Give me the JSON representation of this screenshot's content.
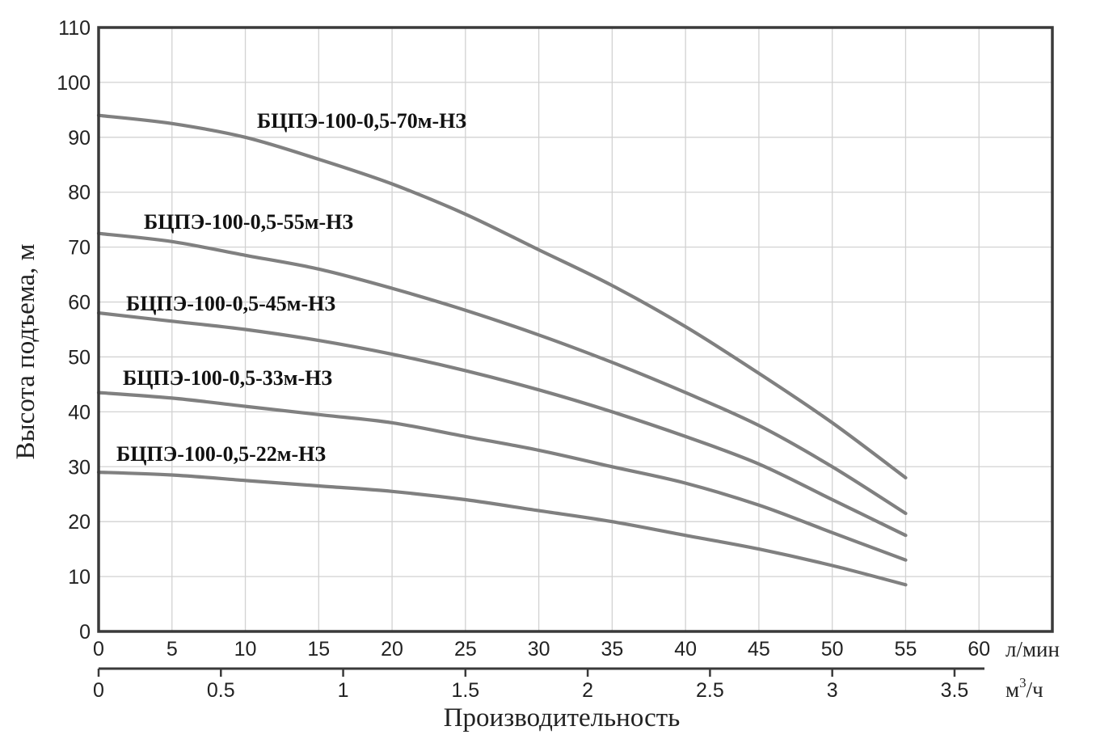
{
  "chart_data": {
    "type": "line",
    "ylabel": "Высота подъема, м",
    "xlabel": "Производительность",
    "x_unit_primary": "л/мин",
    "x_unit_secondary_base": "м",
    "x_unit_secondary_sup": "3",
    "x_unit_secondary_tail": "/ч",
    "xlim": [
      0,
      65
    ],
    "ylim": [
      0,
      110
    ],
    "x_ticks": [
      0,
      5,
      10,
      15,
      20,
      25,
      30,
      35,
      40,
      45,
      50,
      55,
      60
    ],
    "y_ticks": [
      0,
      10,
      20,
      30,
      40,
      50,
      60,
      70,
      80,
      90,
      100,
      110
    ],
    "x2_ticks": [
      0,
      0.5,
      1,
      1.5,
      2,
      2.5,
      3,
      3.5
    ],
    "x2_labels": [
      "0",
      "0.5",
      "1",
      "1.5",
      "2",
      "2.5",
      "3",
      "3.5"
    ],
    "grid": true,
    "series": [
      {
        "name": "БЦПЭ-100-0,5-70м-НЗ",
        "x": [
          0,
          5,
          10,
          15,
          20,
          25,
          30,
          35,
          40,
          45,
          50,
          55
        ],
        "y": [
          94,
          92.5,
          90,
          86,
          81.5,
          76,
          69.5,
          63,
          55.5,
          47,
          38,
          28
        ]
      },
      {
        "name": "БЦПЭ-100-0,5-55м-НЗ",
        "x": [
          0,
          5,
          10,
          15,
          20,
          25,
          30,
          35,
          40,
          45,
          50,
          55
        ],
        "y": [
          72.5,
          71,
          68.5,
          66,
          62.5,
          58.5,
          54,
          49,
          43.5,
          37.5,
          30,
          21.5
        ]
      },
      {
        "name": "БЦПЭ-100-0,5-45м-НЗ",
        "x": [
          0,
          5,
          10,
          15,
          20,
          25,
          30,
          35,
          40,
          45,
          50,
          55
        ],
        "y": [
          58,
          56.5,
          55,
          53,
          50.5,
          47.5,
          44,
          40,
          35.5,
          30.5,
          24,
          17.5
        ]
      },
      {
        "name": "БЦПЭ-100-0,5-33м-НЗ",
        "x": [
          0,
          5,
          10,
          15,
          20,
          25,
          30,
          35,
          40,
          45,
          50,
          55
        ],
        "y": [
          43.5,
          42.5,
          41,
          39.5,
          38,
          35.5,
          33,
          30,
          27,
          23,
          18,
          13
        ]
      },
      {
        "name": "БЦПЭ-100-0,5-22м-НЗ",
        "x": [
          0,
          5,
          10,
          15,
          20,
          25,
          30,
          35,
          40,
          45,
          50,
          55
        ],
        "y": [
          29,
          28.5,
          27.5,
          26.5,
          25.5,
          24,
          22,
          20,
          17.5,
          15,
          12,
          8.5
        ]
      }
    ]
  }
}
